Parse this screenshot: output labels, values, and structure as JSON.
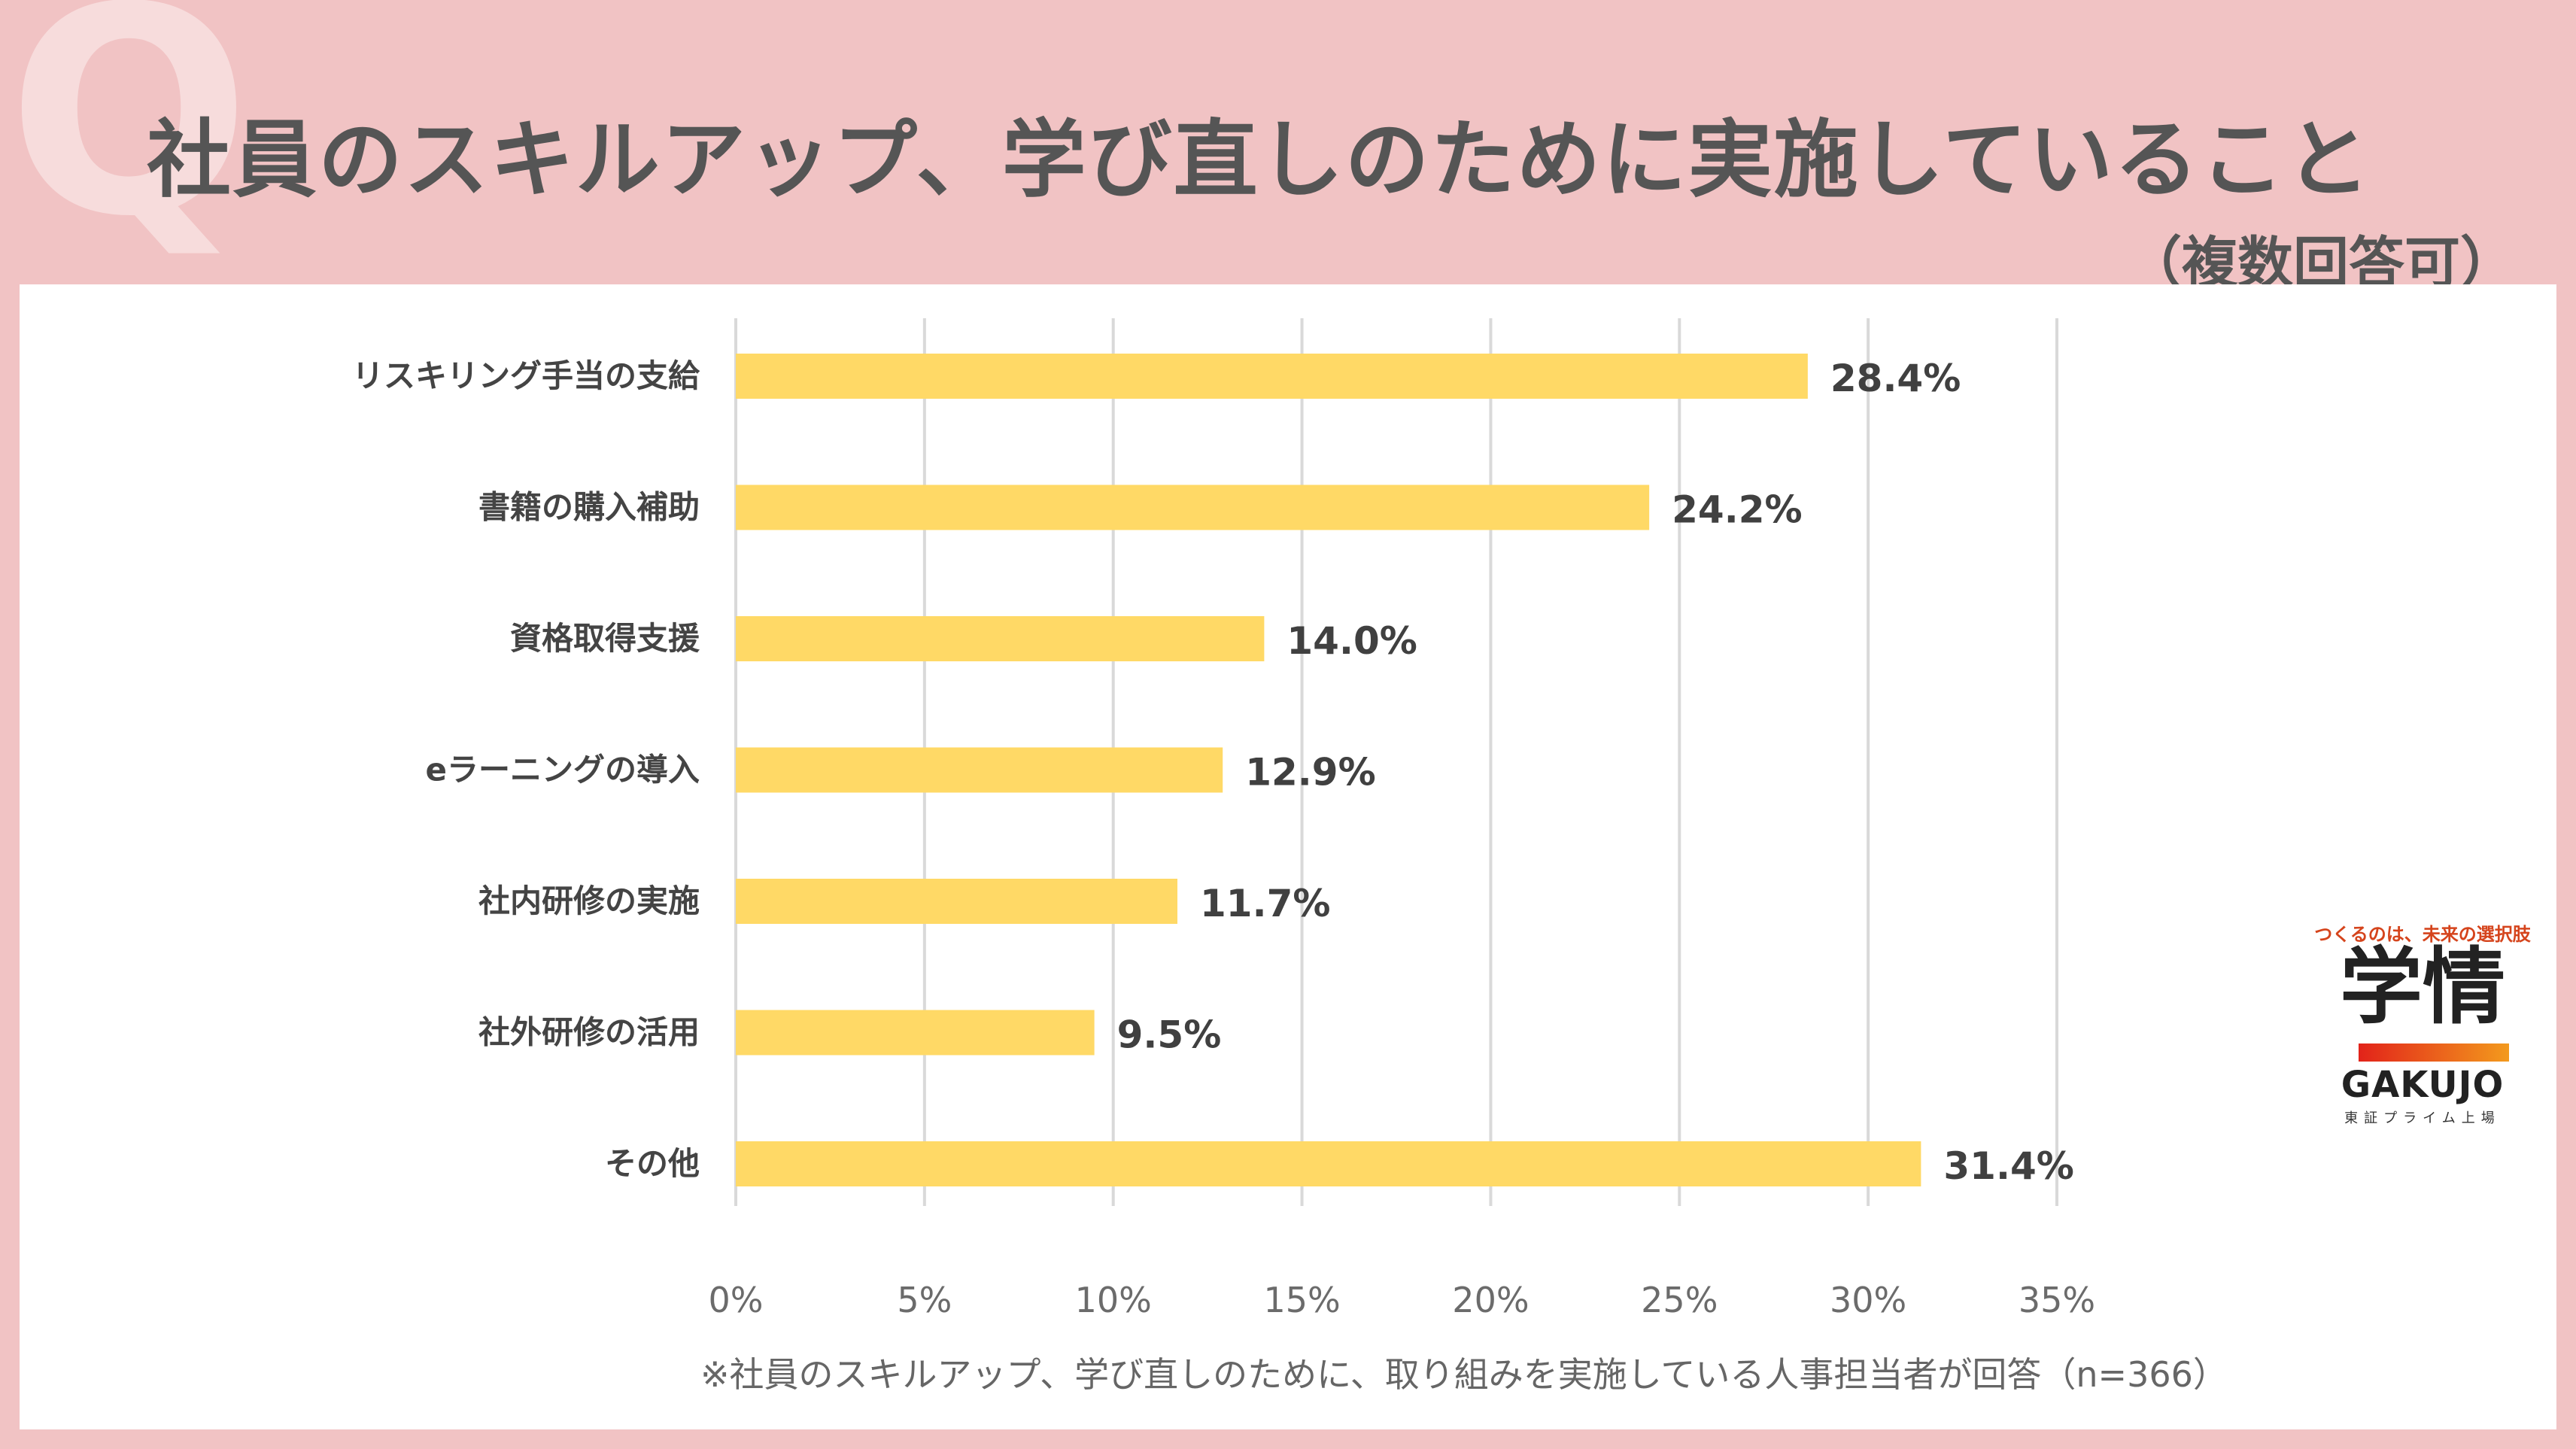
{
  "header": {
    "watermark": "Q",
    "title": "社員のスキルアップ、学び直しのために実施していること",
    "subtitle": "（複数回答可）"
  },
  "chart_data": {
    "type": "bar",
    "orientation": "horizontal",
    "categories": [
      "リスキリング手当の支給",
      "書籍の購入補助",
      "資格取得支援",
      "eラーニングの導入",
      "社内研修の実施",
      "社外研修の活用",
      "その他"
    ],
    "values": [
      28.4,
      24.2,
      14.0,
      12.9,
      11.7,
      9.5,
      31.4
    ],
    "value_labels": [
      "28.4%",
      "24.2%",
      "14.0%",
      "12.9%",
      "11.7%",
      "9.5%",
      "31.4%"
    ],
    "xlim": [
      0,
      35
    ],
    "ticks": [
      0,
      5,
      10,
      15,
      20,
      25,
      30,
      35
    ],
    "tick_labels": [
      "0%",
      "5%",
      "10%",
      "15%",
      "20%",
      "25%",
      "30%",
      "35%"
    ],
    "grid": true,
    "bar_color": "#ffd966"
  },
  "footnote": "※社員のスキルアップ、学び直しのために、取り組みを実施している人事担当者が回答（n=366）",
  "logo": {
    "tagline": "つくるのは、未来の選択肢",
    "mark": "学情",
    "name": "GAKUJO",
    "sub": "東証プライム上場"
  }
}
